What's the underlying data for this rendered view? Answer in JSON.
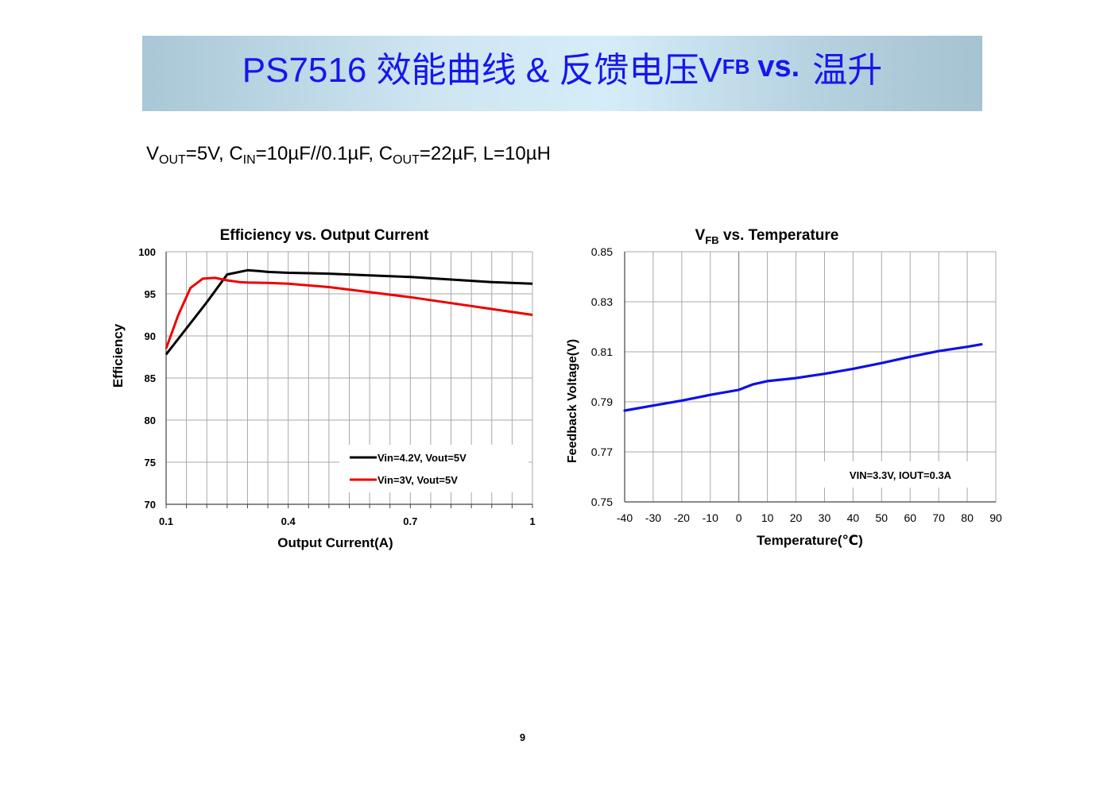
{
  "header": {
    "title_prefix": "PS7516 效能曲线 & 反馈电压V",
    "title_sub": "FB",
    "title_vs": "vs.",
    "title_suffix": "温升"
  },
  "conditions": {
    "v": "V",
    "v_sub": "OUT",
    "v_val": "=5V, ",
    "cin": "C",
    "cin_sub": "IN",
    "cin_val": "=10µF//0.1µF, ",
    "cout": "C",
    "cout_sub": "OUT",
    "cout_val": "=22µF, ",
    "l": "L=10µH"
  },
  "chart_data": [
    {
      "type": "line",
      "title": "Efficiency vs. Output Current",
      "xlabel": "Output Current(A)",
      "ylabel": "Efficiency",
      "xlim": [
        0.1,
        1.0
      ],
      "ylim": [
        70,
        100
      ],
      "x_ticks": [
        "0.1",
        "0.4",
        "0.7",
        "1"
      ],
      "x_tick_values": [
        0.1,
        0.4,
        0.7,
        1.0
      ],
      "y_ticks": [
        "70",
        "75",
        "80",
        "85",
        "90",
        "95",
        "100"
      ],
      "y_tick_values": [
        70,
        75,
        80,
        85,
        90,
        95,
        100
      ],
      "grid": true,
      "legend": "bottom-right",
      "series": [
        {
          "name": "Vin=4.2V, Vout=5V",
          "color": "#000000",
          "x": [
            0.1,
            0.15,
            0.2,
            0.25,
            0.3,
            0.33,
            0.35,
            0.4,
            0.45,
            0.5,
            0.6,
            0.7,
            0.8,
            0.9,
            1.0
          ],
          "y": [
            87.8,
            90.9,
            94.0,
            97.3,
            97.8,
            97.7,
            97.6,
            97.5,
            97.45,
            97.4,
            97.2,
            97.0,
            96.7,
            96.4,
            96.2
          ]
        },
        {
          "name": "Vin=3V, Vout=5V",
          "color": "#ee0000",
          "x": [
            0.1,
            0.13,
            0.16,
            0.19,
            0.22,
            0.25,
            0.28,
            0.3,
            0.35,
            0.4,
            0.5,
            0.6,
            0.7,
            0.8,
            0.9,
            1.0
          ],
          "y": [
            88.5,
            92.5,
            95.7,
            96.8,
            96.9,
            96.6,
            96.4,
            96.35,
            96.3,
            96.2,
            95.8,
            95.2,
            94.6,
            93.9,
            93.2,
            92.5
          ]
        }
      ]
    },
    {
      "type": "line",
      "title_main": "V",
      "title_sub": "FB",
      "title_rest": " vs. Temperature",
      "xlabel": "Temperature(℃)",
      "ylabel": "Feedback Voltage(V)",
      "xlim": [
        -40,
        90
      ],
      "ylim": [
        0.75,
        0.85
      ],
      "x_ticks": [
        "-40",
        "-30",
        "-20",
        "-10",
        "0",
        "10",
        "20",
        "30",
        "40",
        "50",
        "60",
        "70",
        "80",
        "90"
      ],
      "x_tick_values": [
        -40,
        -30,
        -20,
        -10,
        0,
        10,
        20,
        30,
        40,
        50,
        60,
        70,
        80,
        90
      ],
      "y_ticks": [
        "0.75",
        "0.77",
        "0.79",
        "0.81",
        "0.83",
        "0.85"
      ],
      "y_tick_values": [
        0.75,
        0.77,
        0.79,
        0.81,
        0.83,
        0.85
      ],
      "grid": true,
      "annotation": "VIN=3.3V, IOUT=0.3A",
      "series": [
        {
          "color": "#1010e6",
          "x": [
            -40,
            -30,
            -20,
            -10,
            0,
            5,
            10,
            20,
            30,
            40,
            50,
            60,
            70,
            80,
            85
          ],
          "y": [
            0.7865,
            0.7885,
            0.7905,
            0.7928,
            0.7948,
            0.797,
            0.7983,
            0.7995,
            0.8012,
            0.8032,
            0.8055,
            0.808,
            0.8103,
            0.812,
            0.813
          ]
        }
      ]
    }
  ],
  "footer": {
    "page_number": "9"
  }
}
